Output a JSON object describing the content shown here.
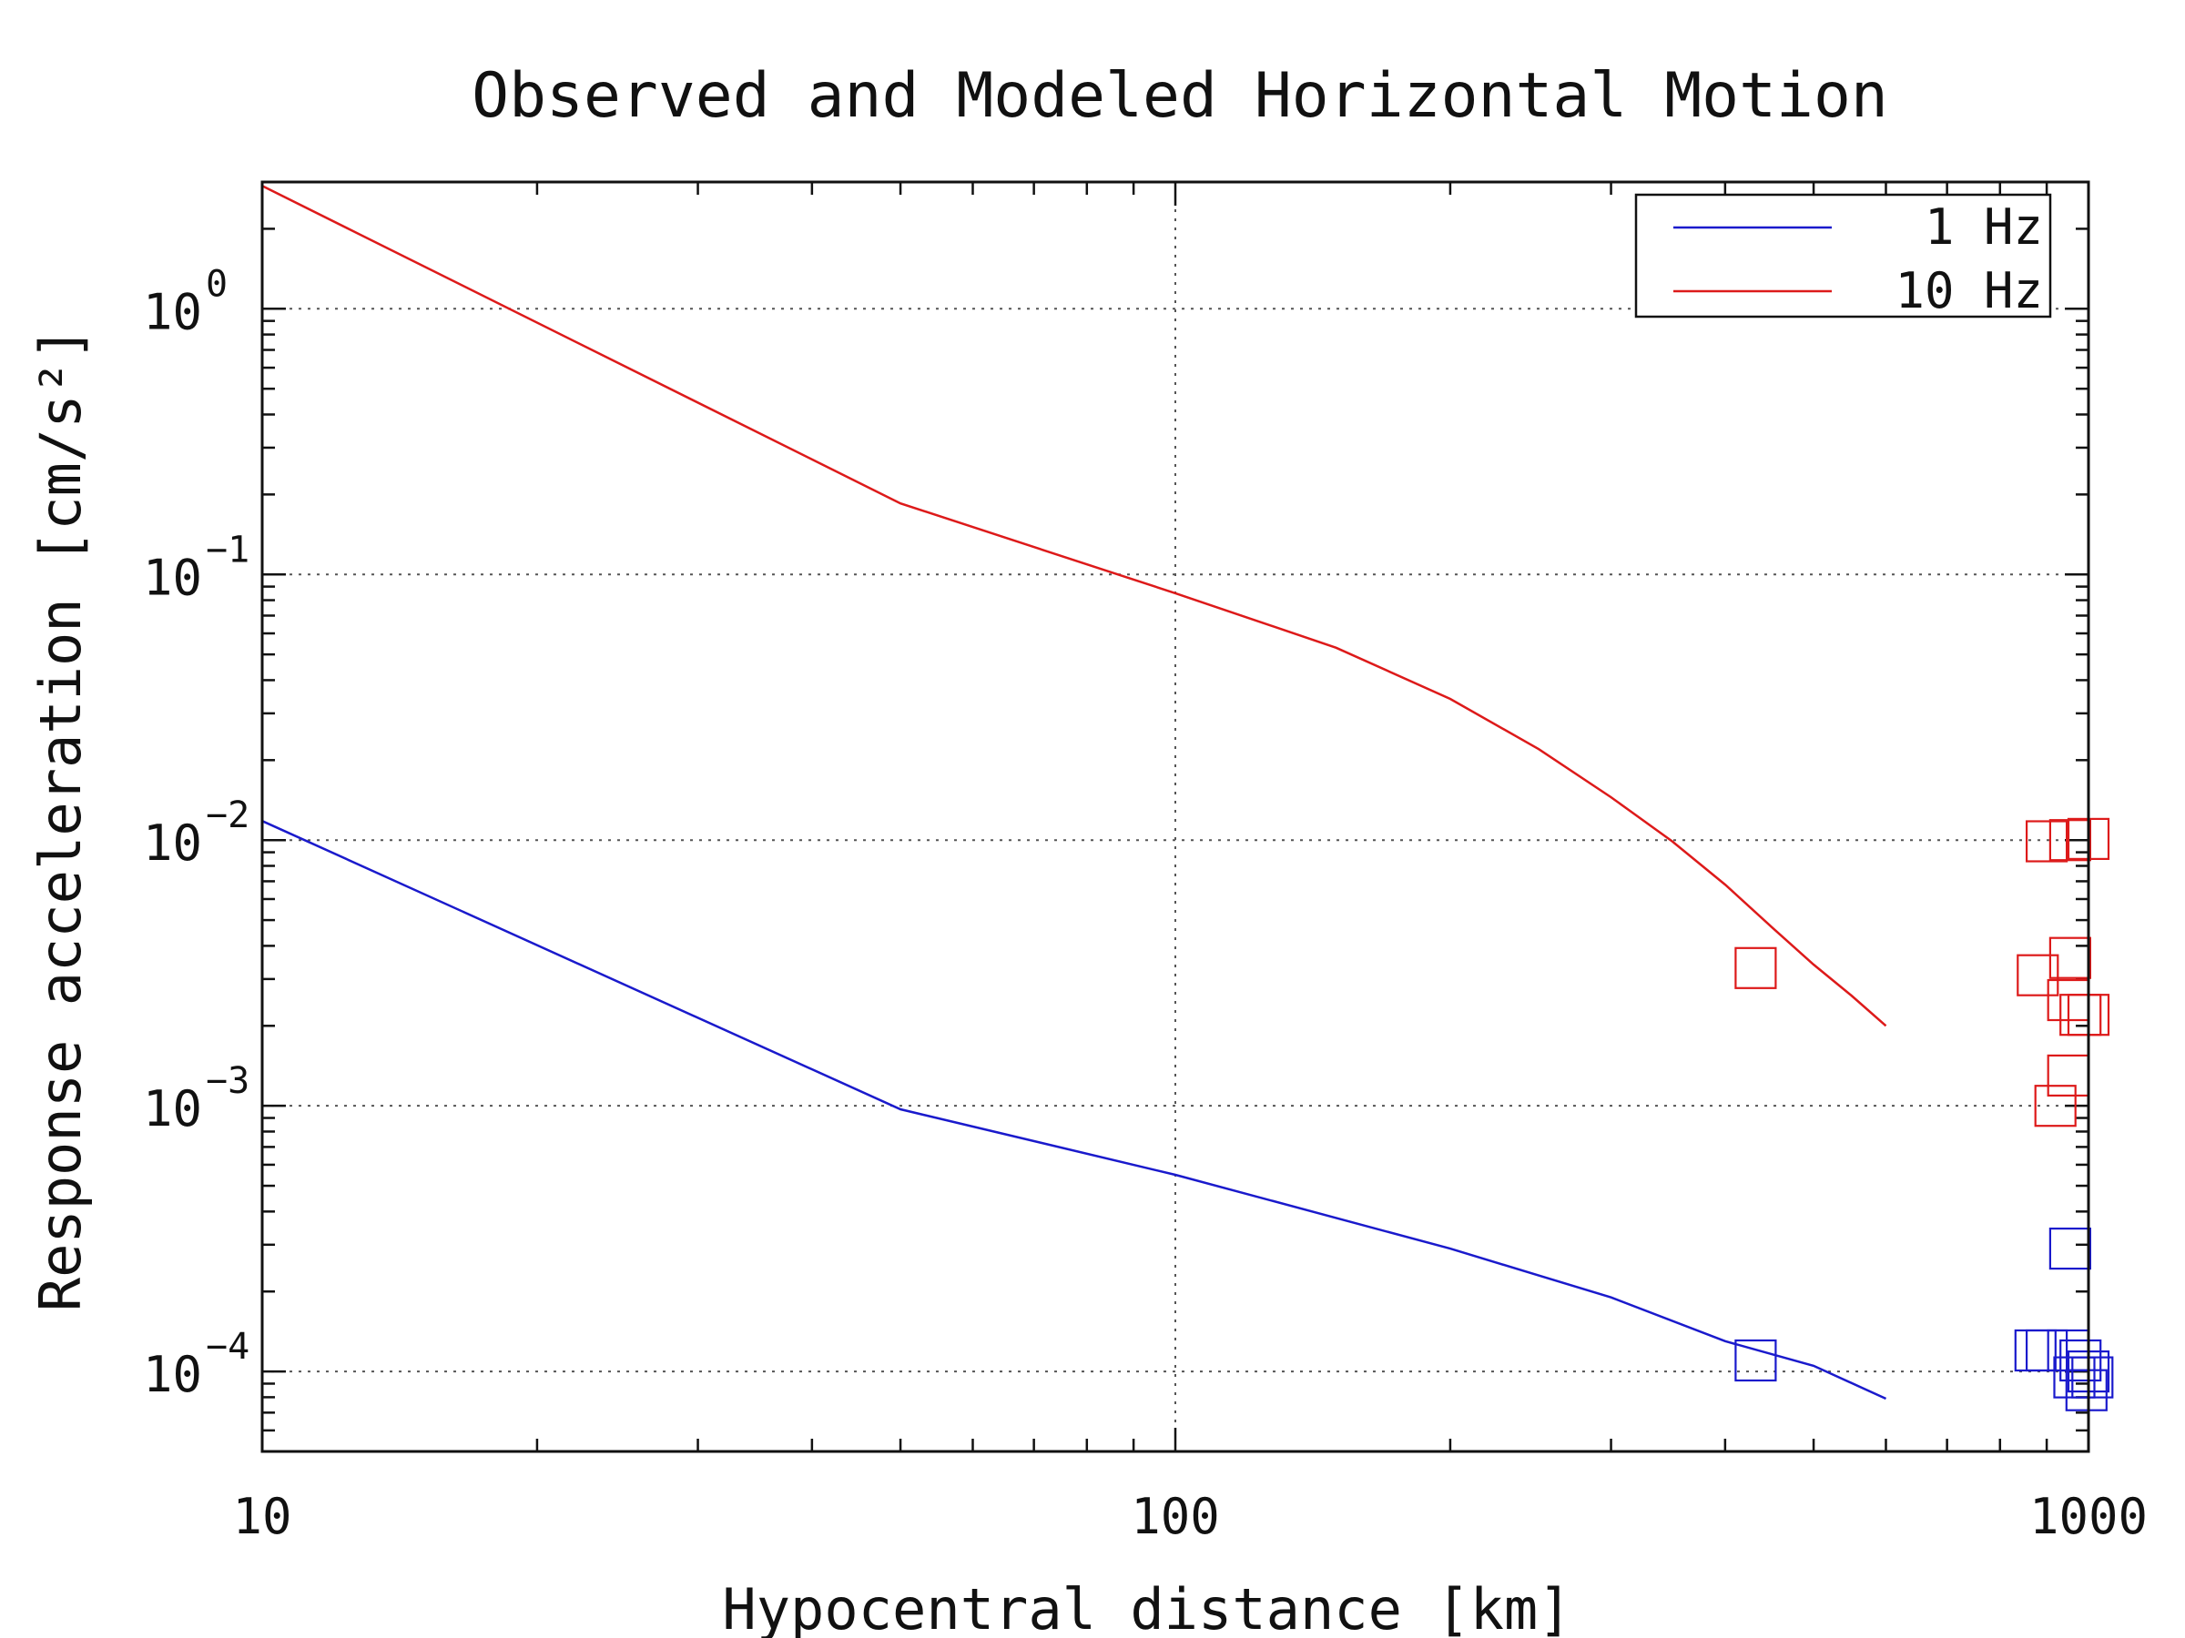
{
  "chart_data": {
    "type": "line",
    "title": "Observed and Modeled Horizontal Motion",
    "xlabel": "Hypocentral distance [km]",
    "ylabel": "Response acceleration [cm/s²]",
    "xscale": "log",
    "yscale": "log",
    "xlim": [
      10,
      1000
    ],
    "ylim": [
      5e-05,
      3
    ],
    "x_ticks": [
      {
        "value": 10,
        "label": "10"
      },
      {
        "value": 100,
        "label": "100"
      },
      {
        "value": 1000,
        "label": "1000"
      }
    ],
    "y_ticks": [
      {
        "value": 1,
        "label": "10",
        "exp": "0"
      },
      {
        "value": 0.1,
        "label": "10",
        "exp": "−1"
      },
      {
        "value": 0.01,
        "label": "10",
        "exp": "−2"
      },
      {
        "value": 0.001,
        "label": "10",
        "exp": "−3"
      },
      {
        "value": 0.0001,
        "label": "10",
        "exp": "−4"
      }
    ],
    "grid": true,
    "legend_position": "top-right",
    "series": [
      {
        "name": "1 Hz",
        "color": "#1a1acc",
        "x": [
          10,
          50,
          100,
          200,
          300,
          400,
          500,
          600
        ],
        "y": [
          0.0118,
          0.00097,
          0.00055,
          0.00029,
          0.00019,
          0.00013,
          0.000105,
          7.9e-05
        ]
      },
      {
        "name": "10 Hz",
        "color": "#dd1a1a",
        "x": [
          10,
          50,
          100,
          150,
          200,
          250,
          300,
          350,
          400,
          450,
          500,
          550,
          600
        ],
        "y": [
          2.9,
          0.185,
          0.085,
          0.053,
          0.034,
          0.022,
          0.0145,
          0.0099,
          0.0068,
          0.0047,
          0.0034,
          0.0026,
          0.002
        ]
      }
    ],
    "observations": [
      {
        "series": "10 Hz",
        "color": "#dd1a1a",
        "x": [
          432,
          900,
          955,
          1000,
          955,
          880,
          950,
          980,
          1000,
          950,
          920
        ],
        "y": [
          0.0033,
          0.0099,
          0.01,
          0.0101,
          0.0036,
          0.0031,
          0.0025,
          0.0022,
          0.0022,
          0.0013,
          0.001
        ]
      },
      {
        "series": "1 Hz",
        "color": "#1a1acc",
        "x": [
          432,
          955,
          875,
          900,
          950,
          965,
          980,
          995,
          1000,
          1010
        ],
        "y": [
          0.00011,
          0.00029,
          0.00012,
          0.00012,
          0.00012,
          9.5e-05,
          0.00011,
          8.5e-05,
          0.0001,
          9.5e-05
        ]
      }
    ]
  }
}
